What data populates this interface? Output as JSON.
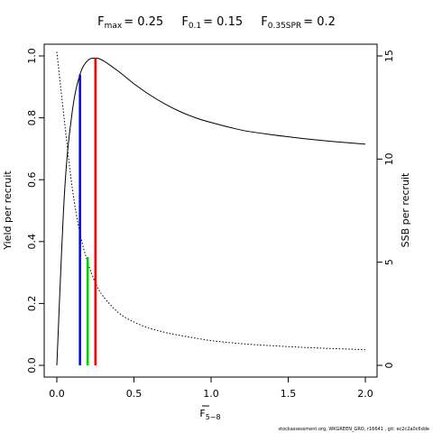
{
  "chart_data": {
    "type": "line",
    "title": {
      "fmax": {
        "base": "F",
        "sub": "max",
        "value": "= 0.25"
      },
      "f01": {
        "base": "F",
        "sub": "0.1",
        "value": "= 0.15"
      },
      "fspr": {
        "base": "F",
        "sub": "0.35SPR",
        "value": "= 0.2"
      }
    },
    "xlabel": {
      "base": "F",
      "sub": "5−8"
    },
    "ylabel_left": "Yield per recruit",
    "ylabel_right": "SSB per recruit",
    "xlim": [
      0,
      2
    ],
    "ylim_left": [
      0,
      1
    ],
    "ylim_right": [
      0,
      15
    ],
    "x_ticks": [
      "0.0",
      "0.5",
      "1.0",
      "1.5",
      "2.0"
    ],
    "y_left_ticks": [
      "0.0",
      "0.2",
      "0.4",
      "0.6",
      "0.8",
      "1.0"
    ],
    "y_right_ticks": [
      "0",
      "5",
      "10",
      "15"
    ],
    "series": [
      {
        "axis": "left",
        "style": "solid",
        "x": [
          0,
          0.05,
          0.1,
          0.15,
          0.2,
          0.25,
          0.3,
          0.4,
          0.5,
          0.6,
          0.7,
          0.8,
          0.9,
          1.0,
          1.2,
          1.4,
          1.6,
          1.8,
          2.0
        ],
        "values": [
          0,
          0.56,
          0.82,
          0.94,
          0.985,
          0.993,
          0.985,
          0.95,
          0.91,
          0.875,
          0.845,
          0.82,
          0.8,
          0.785,
          0.76,
          0.745,
          0.733,
          0.723,
          0.715
        ]
      },
      {
        "axis": "right",
        "style": "dotted",
        "x": [
          0,
          0.05,
          0.1,
          0.15,
          0.2,
          0.25,
          0.3,
          0.4,
          0.5,
          0.6,
          0.7,
          0.8,
          1.0,
          1.2,
          1.4,
          1.6,
          1.8,
          2.0
        ],
        "values": [
          15.2,
          11.8,
          8.6,
          6.4,
          5.0,
          4.0,
          3.35,
          2.55,
          2.1,
          1.8,
          1.6,
          1.45,
          1.2,
          1.05,
          0.95,
          0.87,
          0.81,
          0.76
        ]
      }
    ],
    "reference_lines": [
      {
        "color": "#0000ff",
        "x": 0.15,
        "y_left": 0.94
      },
      {
        "color": "#00cc00",
        "x": 0.2,
        "y_left": 0.35
      },
      {
        "color": "#ff0000",
        "x": 0.25,
        "y_left": 0.993
      }
    ],
    "footer": "stockassessment.org, WKGREEN_GRO, r16641 , git: ec2c2a0c6dde"
  }
}
